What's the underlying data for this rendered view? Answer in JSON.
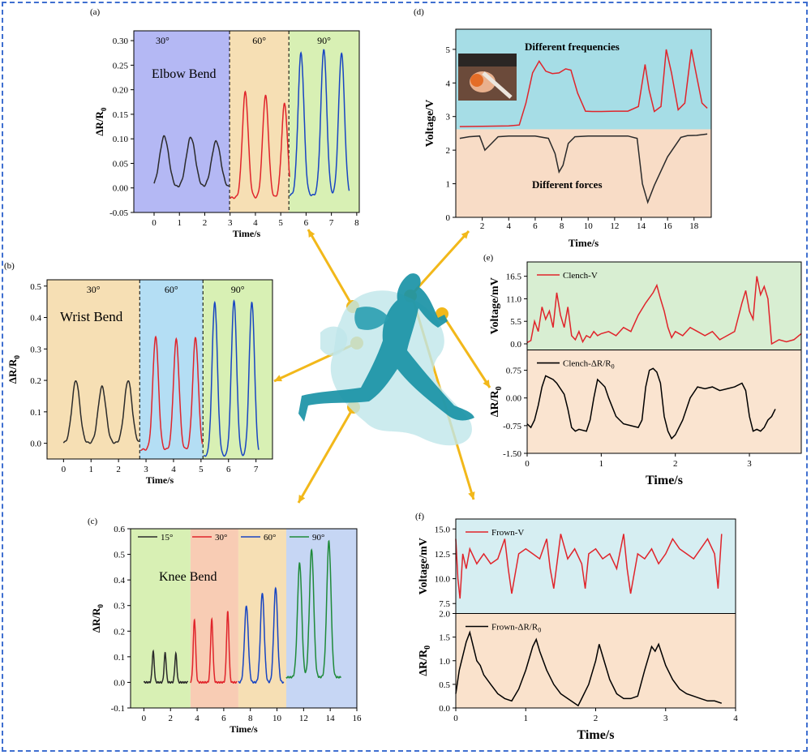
{
  "colors": {
    "frame": "#3f6fd0",
    "arrow": "#f2b81a",
    "figure": "#1a93a6",
    "black": "#2b2b2b",
    "red": "#e0242b",
    "blue": "#1845c2",
    "green": "#1f8a3a"
  },
  "icons": {
    "runner": "running-person-silhouette-icon",
    "photo": "photo-inset-hand-with-sensor"
  },
  "chart_data": [
    {
      "id": "a",
      "letter": "(a)",
      "type": "line",
      "title": "Elbow Bend",
      "xlabel": "Time/s",
      "ylabel": "ΔR/R0",
      "xlim": [
        -0.8,
        8.1
      ],
      "ylim": [
        -0.05,
        0.32
      ],
      "xticks": [
        "0",
        "1",
        "2",
        "3",
        "4",
        "5",
        "6",
        "7",
        "8"
      ],
      "yticks": [
        "-0.05",
        "0.00",
        "0.05",
        "0.10",
        "0.15",
        "0.20",
        "0.25",
        "0.30"
      ],
      "regions": [
        {
          "label": "30°",
          "x": [
            -0.8,
            2.98
          ],
          "color": "#b4b8f4"
        },
        {
          "label": "60°",
          "x": [
            2.98,
            5.32
          ],
          "color": "#f6dfb4"
        },
        {
          "label": "90°",
          "x": [
            5.32,
            8.1
          ],
          "color": "#d8f0b4"
        }
      ],
      "series": [
        {
          "color": "#2b2b2b",
          "peaks": [
            [
              0.4,
              0.105
            ],
            [
              1.45,
              0.103
            ],
            [
              2.45,
              0.095
            ]
          ],
          "x0": 0.0,
          "x1": 2.95,
          "base": 0.0,
          "width": 0.28
        },
        {
          "color": "#e0242b",
          "peaks": [
            [
              3.6,
              0.195
            ],
            [
              4.4,
              0.188
            ],
            [
              5.15,
              0.172
            ]
          ],
          "x0": 3.0,
          "x1": 5.35,
          "base": -0.02,
          "width": 0.18
        },
        {
          "color": "#1845c2",
          "peaks": [
            [
              5.8,
              0.275
            ],
            [
              6.7,
              0.283
            ],
            [
              7.4,
              0.275
            ]
          ],
          "x0": 5.35,
          "x1": 7.7,
          "base": -0.015,
          "width": 0.18
        }
      ]
    },
    {
      "id": "b",
      "letter": "(b)",
      "type": "line",
      "title": "Wrist Bend",
      "xlabel": "Time/s",
      "ylabel": "ΔR/R0",
      "xlim": [
        -0.6,
        7.6
      ],
      "ylim": [
        -0.05,
        0.52
      ],
      "xticks": [
        "0",
        "1",
        "2",
        "3",
        "4",
        "5",
        "6",
        "7"
      ],
      "yticks": [
        "0.0",
        "0.1",
        "0.2",
        "0.3",
        "0.4",
        "0.5"
      ],
      "regions": [
        {
          "label": "30°",
          "x": [
            -0.6,
            2.77
          ],
          "color": "#f6dfb4"
        },
        {
          "label": "60°",
          "x": [
            2.77,
            5.07
          ],
          "color": "#b4def4"
        },
        {
          "label": "90°",
          "x": [
            5.07,
            7.6
          ],
          "color": "#d8f0b4"
        }
      ],
      "series": [
        {
          "color": "#2b2b2b",
          "peaks": [
            [
              0.45,
              0.2
            ],
            [
              1.4,
              0.18
            ],
            [
              2.35,
              0.2
            ]
          ],
          "x0": 0.0,
          "x1": 2.75,
          "base": 0.0,
          "width": 0.22
        },
        {
          "color": "#e0242b",
          "peaks": [
            [
              3.35,
              0.34
            ],
            [
              4.1,
              0.33
            ],
            [
              4.8,
              0.335
            ]
          ],
          "x0": 2.8,
          "x1": 5.05,
          "base": -0.02,
          "width": 0.16
        },
        {
          "color": "#1845c2",
          "peaks": [
            [
              5.5,
              0.45
            ],
            [
              6.2,
              0.455
            ],
            [
              6.85,
              0.45
            ]
          ],
          "x0": 5.1,
          "x1": 7.1,
          "base": -0.04,
          "width": 0.15
        }
      ]
    },
    {
      "id": "c",
      "letter": "(c)",
      "type": "line",
      "title": "Knee Bend",
      "xlabel": "Time/s",
      "ylabel": "ΔR/R0",
      "xlim": [
        -1.0,
        16.0
      ],
      "ylim": [
        -0.1,
        0.6
      ],
      "xticks": [
        "0",
        "2",
        "4",
        "6",
        "8",
        "10",
        "12",
        "14",
        "16"
      ],
      "yticks": [
        "-0.1",
        "0.0",
        "0.1",
        "0.2",
        "0.3",
        "0.4",
        "0.5",
        "0.6"
      ],
      "regions": [
        {
          "label": "",
          "x": [
            -1.0,
            3.5
          ],
          "color": "#d8f0b4"
        },
        {
          "label": "",
          "x": [
            3.5,
            7.1
          ],
          "color": "#f8ccb4"
        },
        {
          "label": "",
          "x": [
            7.1,
            10.7
          ],
          "color": "#f6dfb4"
        },
        {
          "label": "",
          "x": [
            10.7,
            16.0
          ],
          "color": "#c6d6f4"
        }
      ],
      "legend": [
        {
          "name": "15°",
          "color": "#2b2b2b"
        },
        {
          "name": "30°",
          "color": "#e0242b"
        },
        {
          "name": "60°",
          "color": "#1845c2"
        },
        {
          "name": "90°",
          "color": "#1f8a3a"
        }
      ],
      "series": [
        {
          "color": "#2b2b2b",
          "peaks": [
            [
              0.7,
              0.12
            ],
            [
              1.6,
              0.115
            ],
            [
              2.4,
              0.112
            ]
          ],
          "x0": 0.0,
          "x1": 3.3,
          "base": 0.0,
          "width": 0.12
        },
        {
          "color": "#e0242b",
          "peaks": [
            [
              3.8,
              0.245
            ],
            [
              5.1,
              0.245
            ],
            [
              6.3,
              0.275
            ]
          ],
          "x0": 3.5,
          "x1": 7.0,
          "base": 0.0,
          "width": 0.14
        },
        {
          "color": "#1845c2",
          "peaks": [
            [
              7.7,
              0.3
            ],
            [
              8.9,
              0.35
            ],
            [
              9.9,
              0.37
            ]
          ],
          "x0": 7.1,
          "x1": 10.5,
          "base": 0.0,
          "width": 0.22
        },
        {
          "color": "#1f8a3a",
          "peaks": [
            [
              11.7,
              0.465
            ],
            [
              12.6,
              0.52
            ],
            [
              13.9,
              0.55
            ]
          ],
          "x0": 10.7,
          "x1": 14.8,
          "base": 0.02,
          "width": 0.25
        }
      ]
    },
    {
      "id": "d",
      "letter": "(d)",
      "type": "line",
      "xlabel": "Time/s",
      "ylabel": "Voltage/V",
      "xlim": [
        0,
        19.3
      ],
      "ylim": [
        0,
        5.6
      ],
      "xticks": [
        "2",
        "4",
        "6",
        "8",
        "10",
        "12",
        "14",
        "16",
        "18"
      ],
      "yticks": [
        "0",
        "1",
        "2",
        "3",
        "4",
        "5"
      ],
      "top_label": "Different frequencies",
      "bottom_label": "Different forces",
      "regions_y": [
        {
          "y": [
            2.62,
            5.6
          ],
          "color": "#a6dde6"
        },
        {
          "y": [
            0,
            2.62
          ],
          "color": "#f8dcc6"
        }
      ],
      "series": [
        {
          "name": "frequencies",
          "color": "#e0242b",
          "x": [
            0.3,
            2,
            4,
            4.8,
            5.3,
            5.8,
            6.3,
            6.8,
            7.3,
            7.8,
            8.3,
            8.7,
            9.2,
            9.8,
            10.3,
            11,
            12,
            13,
            13.8,
            14.3,
            14.6,
            15,
            15.5,
            15.9,
            16.3,
            16.8,
            17.3,
            17.8,
            18.2,
            18.6,
            19
          ],
          "y": [
            2.7,
            2.71,
            2.72,
            2.75,
            3.4,
            4.3,
            4.65,
            4.35,
            4.28,
            4.3,
            4.42,
            4.38,
            3.7,
            3.16,
            3.15,
            3.15,
            3.16,
            3.16,
            3.3,
            4.55,
            3.8,
            3.15,
            3.3,
            5.0,
            4.3,
            3.2,
            3.4,
            5.0,
            4.2,
            3.4,
            3.25
          ]
        },
        {
          "name": "forces",
          "color": "#2b2b2b",
          "x": [
            0.3,
            1,
            1.8,
            2.2,
            2.7,
            3.2,
            4,
            5,
            6,
            7,
            7.5,
            7.8,
            8.1,
            8.5,
            9,
            10,
            11,
            12,
            13,
            13.7,
            14.1,
            14.5,
            15,
            16,
            17,
            17.5,
            18.2,
            19
          ],
          "y": [
            2.35,
            2.4,
            2.42,
            2.0,
            2.2,
            2.4,
            2.42,
            2.42,
            2.42,
            2.35,
            1.9,
            1.35,
            1.55,
            2.2,
            2.4,
            2.42,
            2.42,
            2.42,
            2.42,
            2.35,
            1.0,
            0.45,
            0.95,
            1.8,
            2.38,
            2.43,
            2.44,
            2.48
          ]
        }
      ]
    },
    {
      "id": "e",
      "letter": "(e)",
      "type": "line",
      "xlabel": "Time/s",
      "xlim": [
        0,
        3.7
      ],
      "xticks": [
        "0",
        "1",
        "2",
        "3"
      ],
      "top": {
        "ylabel": "Voltage/mV",
        "ylim": [
          -1.5,
          20
        ],
        "yticks": [
          "0.0",
          "5.5",
          "11.0",
          "16.5"
        ],
        "legend": "Clench-V",
        "color": "#e0242b",
        "bg": "#d8eed2"
      },
      "bottom": {
        "ylabel": "ΔR/R0",
        "ylim": [
          -1.5,
          1.3
        ],
        "yticks": [
          "-1.50",
          "-0.75",
          "0.00",
          "0.75"
        ],
        "legend": "Clench-ΔR/R0",
        "color": "#000000",
        "bg": "#fae4d0"
      },
      "v": {
        "x": [
          0,
          0.05,
          0.1,
          0.15,
          0.2,
          0.25,
          0.3,
          0.35,
          0.4,
          0.45,
          0.5,
          0.55,
          0.6,
          0.65,
          0.7,
          0.75,
          0.8,
          0.85,
          0.9,
          0.95,
          1.0,
          1.1,
          1.2,
          1.3,
          1.4,
          1.5,
          1.6,
          1.7,
          1.75,
          1.8,
          1.85,
          1.9,
          1.95,
          2.0,
          2.1,
          2.2,
          2.3,
          2.4,
          2.5,
          2.6,
          2.7,
          2.8,
          2.9,
          2.95,
          3.0,
          3.05,
          3.1,
          3.15,
          3.2,
          3.25,
          3.3,
          3.35,
          3.4,
          3.5,
          3.6,
          3.7
        ],
        "y": [
          0.3,
          0.8,
          5.5,
          3,
          9,
          6,
          8,
          4,
          12.5,
          7,
          4,
          9,
          2,
          1,
          3,
          0.5,
          2,
          1.5,
          3,
          2,
          2.5,
          3,
          2,
          4,
          3,
          7,
          10,
          12.5,
          14.3,
          11,
          8,
          4,
          1.5,
          3,
          2,
          4,
          3,
          2,
          3,
          1,
          2,
          3,
          10,
          13,
          8,
          6,
          16.5,
          12,
          14,
          11,
          0,
          0.5,
          1,
          0.5,
          1,
          2.5
        ]
      },
      "r": {
        "x": [
          0,
          0.05,
          0.1,
          0.15,
          0.2,
          0.25,
          0.3,
          0.35,
          0.4,
          0.5,
          0.55,
          0.6,
          0.65,
          0.7,
          0.8,
          0.85,
          0.9,
          0.95,
          1.0,
          1.05,
          1.1,
          1.2,
          1.3,
          1.4,
          1.5,
          1.55,
          1.6,
          1.65,
          1.7,
          1.75,
          1.8,
          1.85,
          1.9,
          1.95,
          2.0,
          2.1,
          2.2,
          2.3,
          2.4,
          2.5,
          2.6,
          2.7,
          2.8,
          2.9,
          2.95,
          3.0,
          3.05,
          3.1,
          3.15,
          3.2,
          3.25,
          3.3,
          3.35
        ],
        "y": [
          -0.7,
          -0.8,
          -0.6,
          -0.2,
          0.3,
          0.6,
          0.55,
          0.5,
          0.4,
          0.1,
          -0.3,
          -0.8,
          -0.9,
          -0.85,
          -0.9,
          -0.6,
          0.0,
          0.5,
          0.4,
          0.3,
          0.0,
          -0.5,
          -0.7,
          -0.75,
          -0.8,
          -0.6,
          0.3,
          0.75,
          0.8,
          0.7,
          0.4,
          -0.5,
          -0.9,
          -1.1,
          -1.0,
          -0.6,
          0.0,
          0.3,
          0.25,
          0.3,
          0.2,
          0.25,
          0.3,
          0.4,
          0.2,
          -0.5,
          -0.9,
          -0.85,
          -0.9,
          -0.8,
          -0.6,
          -0.5,
          -0.3
        ]
      }
    },
    {
      "id": "f",
      "letter": "(f)",
      "type": "line",
      "xlabel": "Time/s",
      "xlim": [
        0,
        4.0
      ],
      "xticks": [
        "0",
        "1",
        "2",
        "3",
        "4"
      ],
      "top": {
        "ylabel": "Voltage/mV",
        "ylim": [
          6.5,
          16
        ],
        "yticks": [
          "7.5",
          "10.0",
          "12.5",
          "15.0"
        ],
        "legend": "Frown-V",
        "color": "#e0242b",
        "bg": "#d6eef2"
      },
      "bottom": {
        "ylabel": "ΔR/R0",
        "ylim": [
          0,
          2.0
        ],
        "yticks": [
          "0.0",
          "0.5",
          "1.0",
          "1.5",
          "2.0"
        ],
        "legend": "Frown-ΔR/R0",
        "color": "#000000",
        "bg": "#fae2cc"
      },
      "v": {
        "x": [
          0,
          0.03,
          0.06,
          0.1,
          0.15,
          0.2,
          0.3,
          0.4,
          0.5,
          0.6,
          0.7,
          0.75,
          0.8,
          0.9,
          1.0,
          1.1,
          1.2,
          1.3,
          1.35,
          1.4,
          1.5,
          1.6,
          1.7,
          1.8,
          1.85,
          1.9,
          2.0,
          2.1,
          2.2,
          2.3,
          2.4,
          2.45,
          2.5,
          2.6,
          2.7,
          2.8,
          2.9,
          3.0,
          3.1,
          3.2,
          3.3,
          3.4,
          3.5,
          3.6,
          3.7,
          3.75,
          3.8
        ],
        "y": [
          14,
          10,
          8,
          12.5,
          11,
          13,
          11.5,
          12.5,
          11.5,
          12,
          14,
          11,
          8.5,
          12.5,
          13,
          12.5,
          12,
          14,
          11,
          9,
          14.5,
          12,
          13,
          11.5,
          9,
          12.5,
          13,
          12,
          12.5,
          11,
          14.5,
          11,
          8.5,
          12.5,
          12,
          13,
          11.5,
          12.5,
          14,
          13,
          12.5,
          12,
          13,
          14,
          12.5,
          9,
          14.5
        ]
      },
      "r": {
        "x": [
          0,
          0.05,
          0.1,
          0.15,
          0.2,
          0.25,
          0.3,
          0.35,
          0.4,
          0.5,
          0.6,
          0.7,
          0.8,
          0.9,
          1.0,
          1.1,
          1.15,
          1.2,
          1.3,
          1.4,
          1.5,
          1.6,
          1.7,
          1.75,
          1.8,
          1.9,
          2.0,
          2.05,
          2.1,
          2.2,
          2.3,
          2.4,
          2.5,
          2.6,
          2.7,
          2.8,
          2.85,
          2.9,
          3.0,
          3.1,
          3.2,
          3.3,
          3.4,
          3.5,
          3.6,
          3.7,
          3.8
        ],
        "y": [
          0.3,
          0.8,
          1.1,
          1.4,
          1.6,
          1.3,
          1.0,
          0.9,
          0.7,
          0.5,
          0.3,
          0.2,
          0.15,
          0.4,
          0.8,
          1.3,
          1.45,
          1.2,
          0.8,
          0.5,
          0.3,
          0.2,
          0.1,
          0.05,
          0.2,
          0.5,
          1.0,
          1.35,
          1.1,
          0.6,
          0.3,
          0.2,
          0.2,
          0.25,
          0.8,
          1.3,
          1.2,
          1.35,
          0.9,
          0.6,
          0.4,
          0.3,
          0.25,
          0.2,
          0.15,
          0.15,
          0.1
        ]
      }
    }
  ]
}
